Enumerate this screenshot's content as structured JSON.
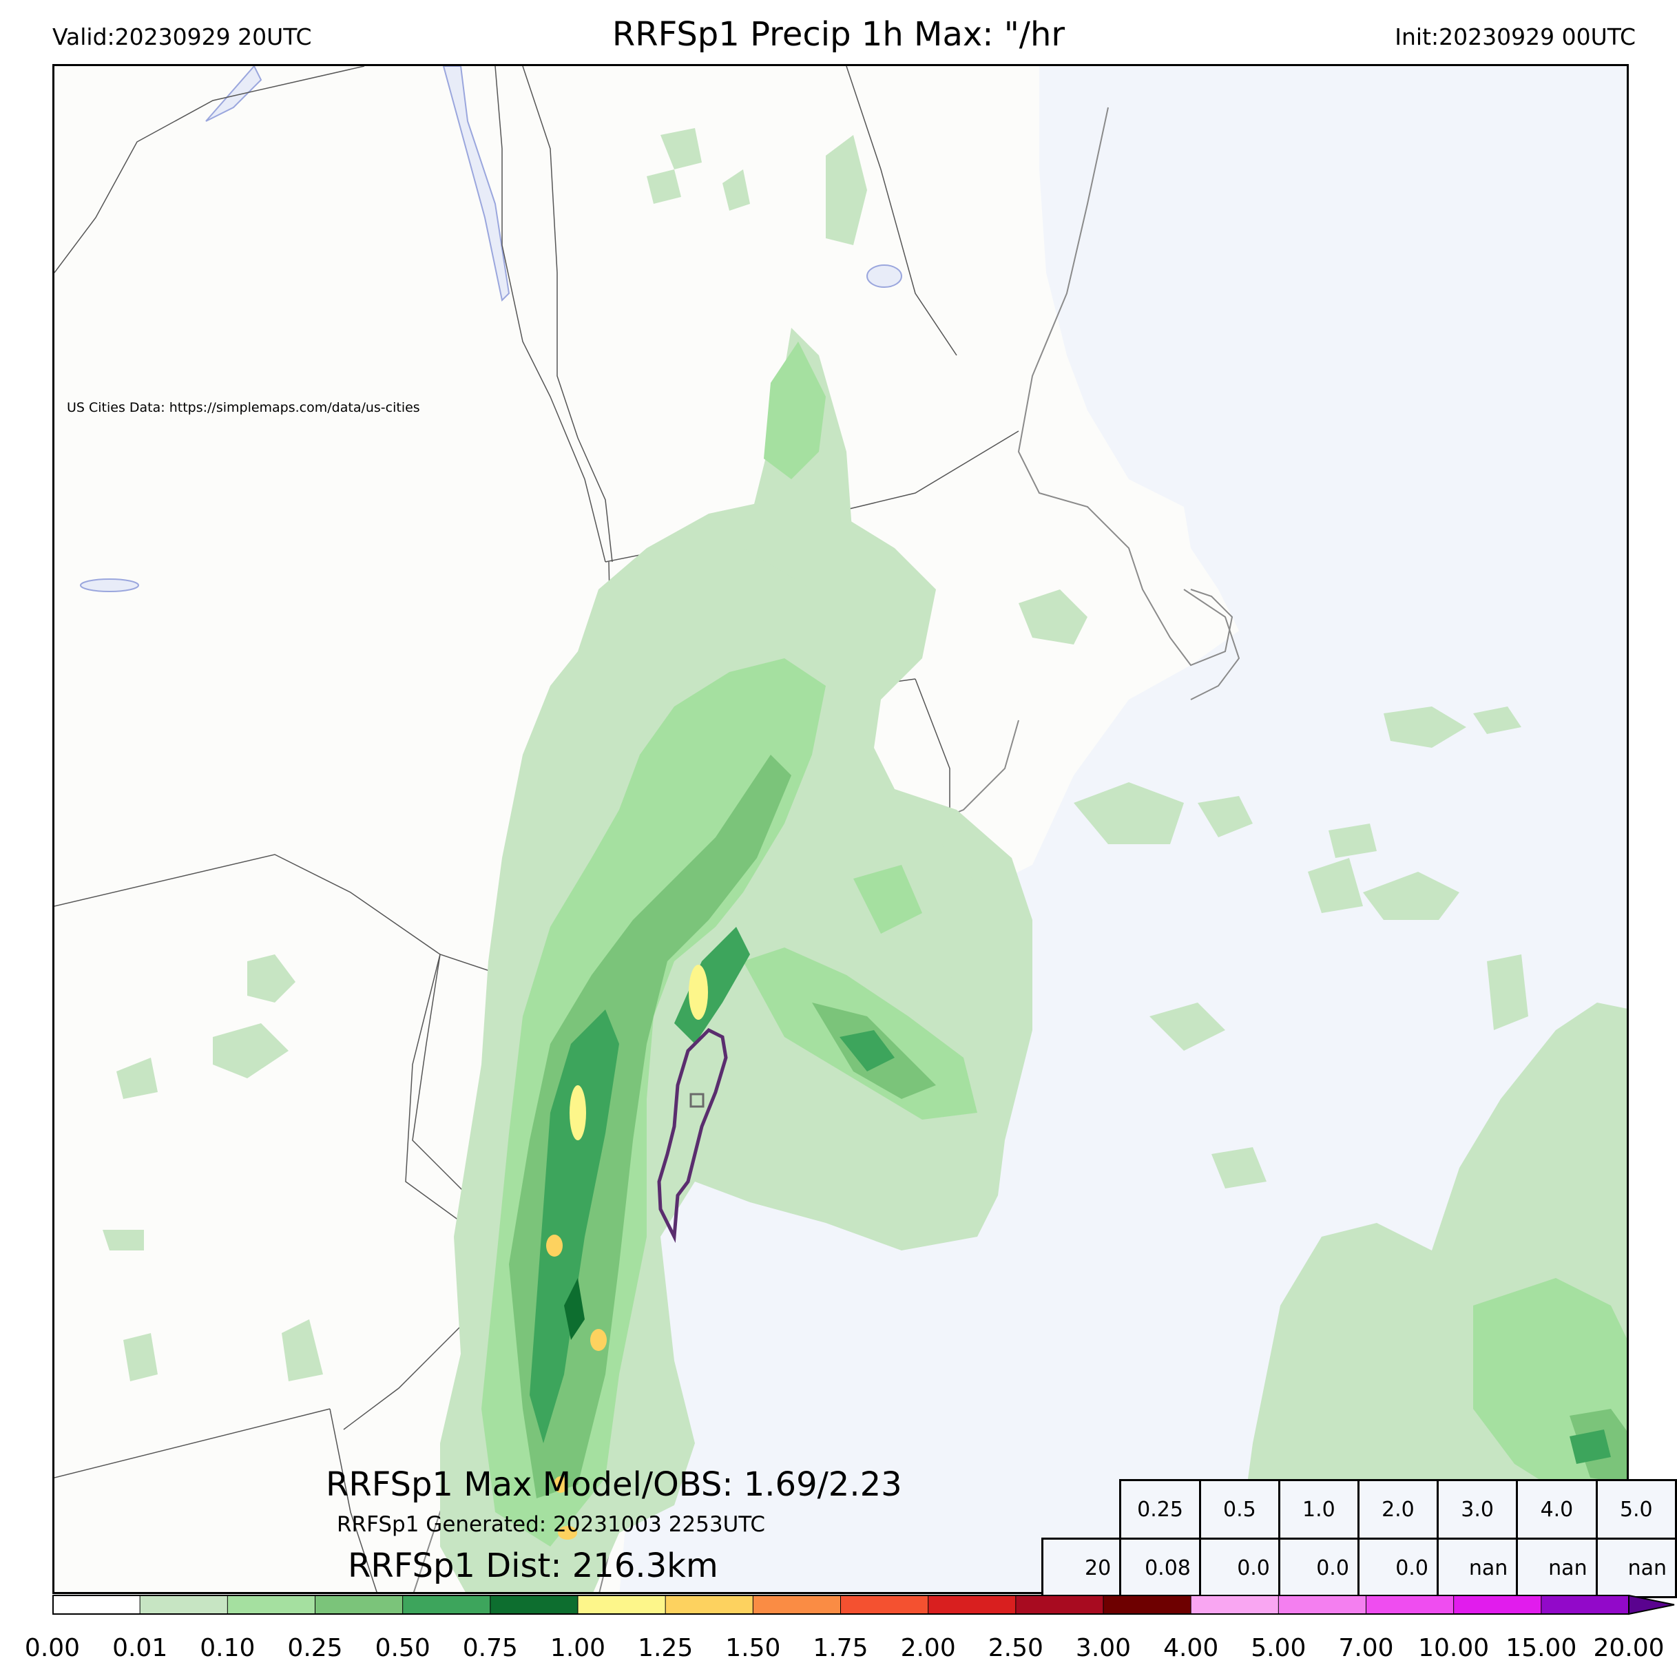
{
  "header": {
    "valid": "Valid:20230929 20UTC",
    "title": "RRFSp1 Precip 1h Max: \"/hr",
    "init": "Init:20230929 00UTC"
  },
  "map": {
    "credit": "US Cities Data: https://simplemaps.com/data/us-cities",
    "land_color": "#fcfcfa",
    "water_color": "#f2f5fb",
    "lake_color": "#e8ecf8"
  },
  "annotations": {
    "max_model_obs": "RRFSp1 Max Model/OBS: 1.69/2.23",
    "generated": "RRFSp1 Generated: 20231003 2253UTC",
    "distance": "RRFSp1 Dist: 216.3km"
  },
  "stats_table": {
    "thresholds": [
      "0.25",
      "0.5",
      "1.0",
      "2.0",
      "3.0",
      "4.0",
      "5.0"
    ],
    "row_label": "20",
    "values": [
      "0.08",
      "0.0",
      "0.0",
      "0.0",
      "nan",
      "nan",
      "nan"
    ]
  },
  "colorbar": {
    "levels": [
      "0.00",
      "0.01",
      "0.10",
      "0.25",
      "0.50",
      "0.75",
      "1.00",
      "1.25",
      "1.50",
      "1.75",
      "2.00",
      "2.50",
      "3.00",
      "4.00",
      "5.00",
      "7.00",
      "10.00",
      "15.00",
      "20.00"
    ],
    "colors": [
      "#ffffff",
      "#c7e5c3",
      "#a5e0a0",
      "#7bc47a",
      "#3da55c",
      "#0d6e2f",
      "#fdf68a",
      "#fdd25f",
      "#fa8c44",
      "#f45130",
      "#d91f1f",
      "#a80b20",
      "#6e0000",
      "#f9a6f2",
      "#f47ff0",
      "#ef4df0",
      "#e11ced",
      "#9209c9"
    ],
    "extend_color": "#5a038f"
  }
}
